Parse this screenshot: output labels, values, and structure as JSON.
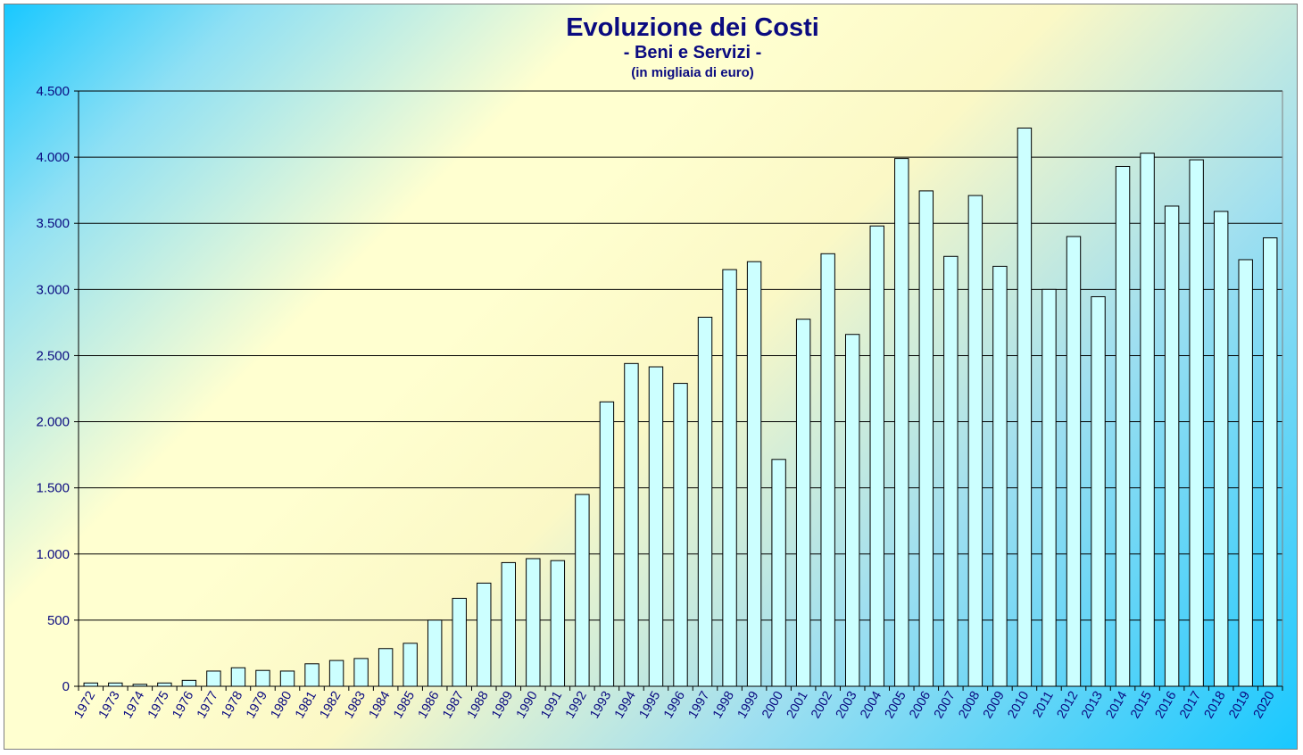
{
  "chart_data": {
    "type": "bar",
    "title": "Evoluzione dei Costi",
    "subtitle": "- Beni e Servizi -",
    "unit_note": "(in migliaia di euro)",
    "xlabel": "",
    "ylabel": "",
    "ylim": [
      0,
      4500
    ],
    "yticks": [
      0,
      500,
      1000,
      1500,
      2000,
      2500,
      3000,
      3500,
      4000,
      4500
    ],
    "ytick_labels": [
      "0",
      "500",
      "1.000",
      "1.500",
      "2.000",
      "2.500",
      "3.000",
      "3.500",
      "4.000",
      "4.500"
    ],
    "grid": true,
    "legend": "none",
    "bar_color": "#ccffff",
    "bar_edge_color": "#000000",
    "categories": [
      "1972",
      "1973",
      "1974",
      "1975",
      "1976",
      "1977",
      "1978",
      "1979",
      "1980",
      "1981",
      "1982",
      "1983",
      "1984",
      "1985",
      "1986",
      "1987",
      "1988",
      "1989",
      "1990",
      "1991",
      "1992",
      "1993",
      "1994",
      "1995",
      "1996",
      "1997",
      "1998",
      "1999",
      "2000",
      "2001",
      "2002",
      "2003",
      "2004",
      "2005",
      "2006",
      "2007",
      "2008",
      "2009",
      "2010",
      "2011",
      "2012",
      "2013",
      "2014",
      "2015",
      "2016",
      "2017",
      "2018",
      "2019",
      "2020"
    ],
    "values": [
      25,
      25,
      15,
      25,
      45,
      115,
      140,
      120,
      115,
      170,
      195,
      210,
      285,
      325,
      500,
      665,
      780,
      935,
      965,
      950,
      1450,
      2150,
      2440,
      2415,
      2290,
      2790,
      3150,
      3210,
      1715,
      2775,
      3270,
      2660,
      3480,
      3990,
      3745,
      3250,
      3710,
      3175,
      4220,
      3000,
      3400,
      2945,
      3930,
      4030,
      3630,
      3980,
      3590,
      3225,
      3390
    ]
  }
}
